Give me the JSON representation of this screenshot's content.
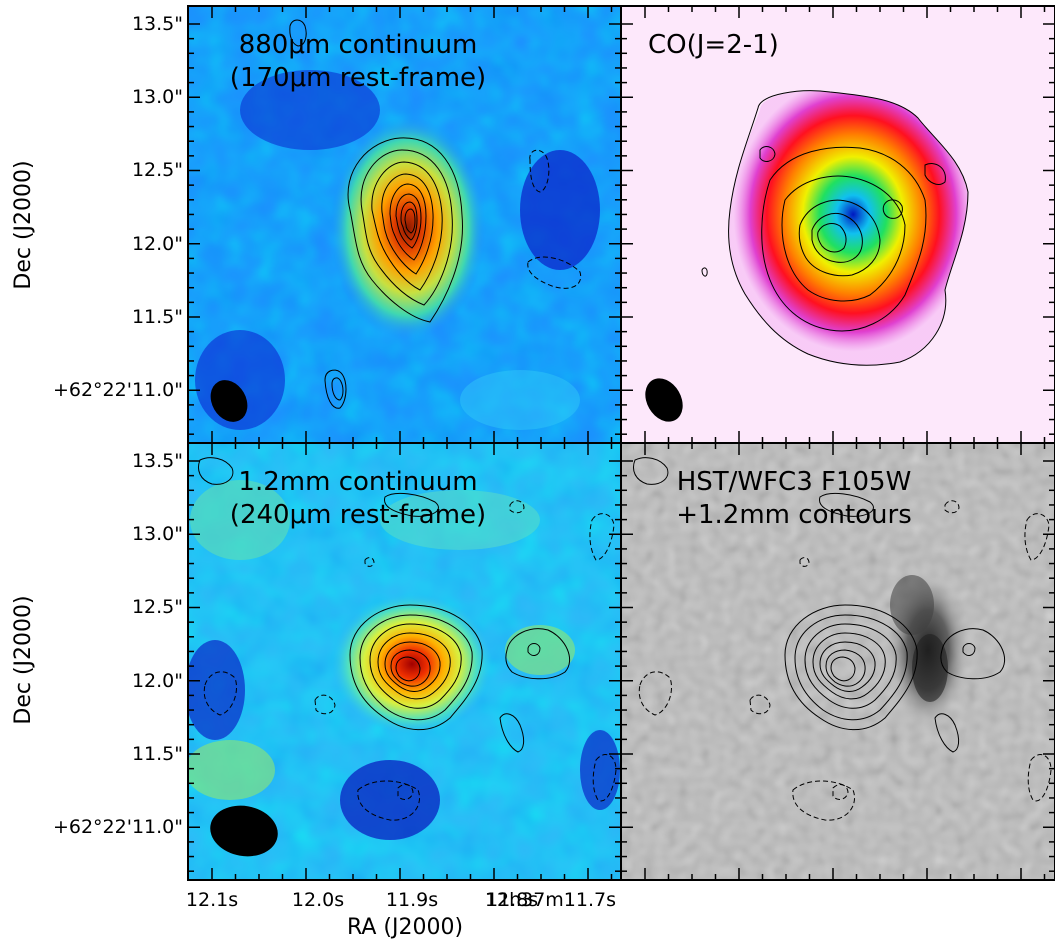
{
  "figure": {
    "y_axis_label": "Dec (J2000)",
    "x_axis_label": "RA (J2000)",
    "dec_ticks": [
      "13.5\"",
      "13.0\"",
      "12.5\"",
      "12.0\"",
      "11.5\"",
      "+62°22'11.0\""
    ],
    "ra_ticks": [
      "12.1s",
      "12.0s",
      "11.9s",
      "11.8s",
      "12h37m11.7s"
    ]
  },
  "panels": [
    {
      "id": "p880",
      "title_line1": "880μm continuum",
      "title_line2": "(170μm rest-frame)",
      "colormap": "jet"
    },
    {
      "id": "pco",
      "title_line1": "CO(J=2-1)",
      "title_line2": "",
      "colormap": "rainbow-on-white"
    },
    {
      "id": "p12",
      "title_line1": "1.2mm continuum",
      "title_line2": "(240μm rest-frame)",
      "colormap": "jet"
    },
    {
      "id": "phst",
      "title_line1": "HST/WFC3 F105W",
      "title_line2": "+1.2mm contours",
      "colormap": "grayscale"
    }
  ],
  "colors": {
    "jet_background": "#1e8cff",
    "co_background": "#fde8fb",
    "hst_background": "#bdbdbd",
    "beam": "#000000",
    "contour": "#000000"
  }
}
